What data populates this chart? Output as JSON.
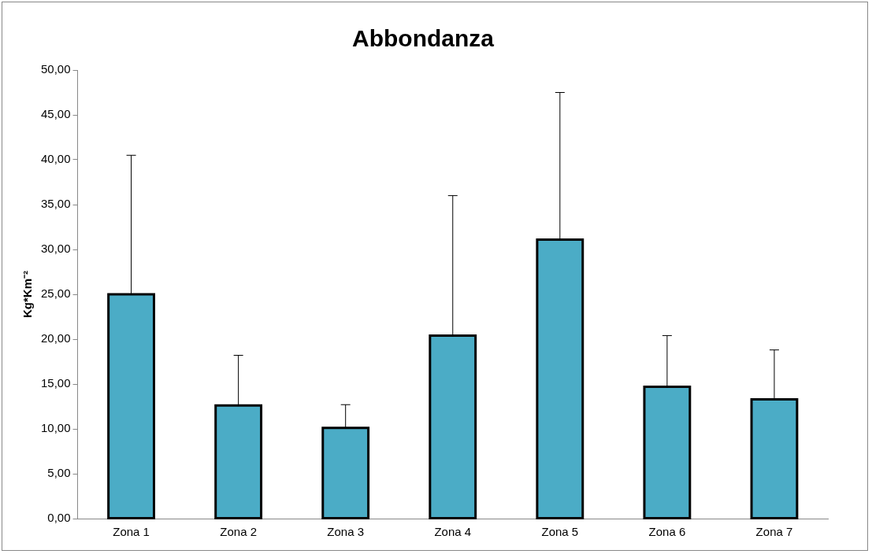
{
  "chart_data": {
    "type": "bar",
    "title": "Abbondanza",
    "ylabel": "Kg*Km⁻²",
    "categories": [
      "Zona 1",
      "Zona 2",
      "Zona 3",
      "Zona 4",
      "Zona 5",
      "Zona 6",
      "Zona 7"
    ],
    "values": [
      25.0,
      12.6,
      10.1,
      20.4,
      31.1,
      14.7,
      13.3
    ],
    "errors": [
      [
        25.0,
        40.5
      ],
      [
        12.6,
        18.2
      ],
      [
        10.1,
        12.7
      ],
      [
        20.4,
        36.0
      ],
      [
        31.1,
        47.5
      ],
      [
        14.7,
        20.4
      ],
      [
        13.3,
        18.8
      ]
    ],
    "color": "#4bacc6",
    "ylim": [
      0,
      50
    ],
    "yticks": [
      {
        "value": 0,
        "label": "0,00"
      },
      {
        "value": 5,
        "label": "5,00"
      },
      {
        "value": 10,
        "label": "10,00"
      },
      {
        "value": 15,
        "label": "15,00"
      },
      {
        "value": 20,
        "label": "20,00"
      },
      {
        "value": 25,
        "label": "25,00"
      },
      {
        "value": 30,
        "label": "30,00"
      },
      {
        "value": 35,
        "label": "35,00"
      },
      {
        "value": 40,
        "label": "40,00"
      },
      {
        "value": 45,
        "label": "45,00"
      },
      {
        "value": 50,
        "label": "50,00"
      }
    ],
    "grid": false,
    "legend": false
  }
}
